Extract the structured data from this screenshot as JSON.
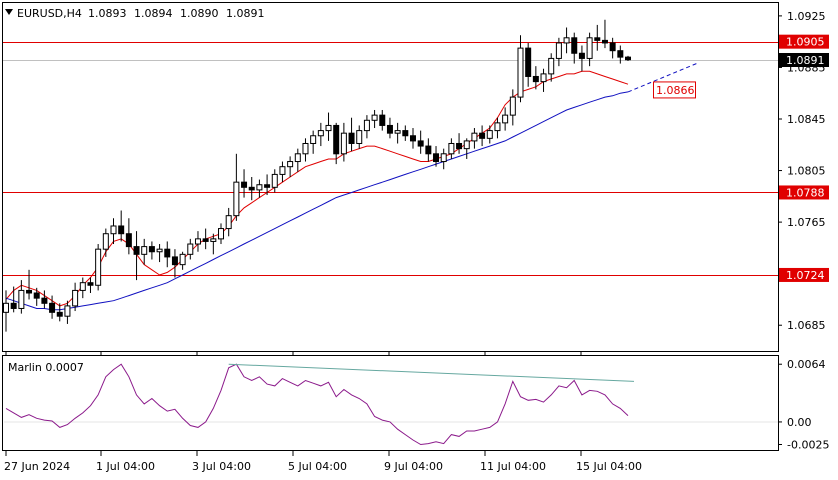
{
  "window": {
    "symbol_label": "EURUSD,H4",
    "ohlc": {
      "open": "1.0893",
      "high": "1.0894",
      "low": "1.0890",
      "close": "1.0891"
    },
    "menu_icon": "triangle-down-icon"
  },
  "indicator": {
    "label": "Marlin 0.0007",
    "line_color": "#8b1a8b",
    "trendline_color": "#66a8a0",
    "y_ticks": [
      "0.0064",
      "0.00",
      "-0.0025"
    ]
  },
  "colors": {
    "price_line": "#e00000",
    "ma_short": "#e00000",
    "ma_long": "#1010c0",
    "candle": "#000000"
  },
  "price_tags": {
    "current": "1.0891",
    "levels": [
      "1.0905",
      "1.0788",
      "1.0724"
    ],
    "projection_label": "1.0866"
  },
  "chart_data": [
    {
      "type": "candlestick",
      "title": "EURUSD,H4",
      "ylim": [
        1.0665,
        1.0935
      ],
      "y_ticks": [
        "1.0925",
        "1.0885",
        "1.0845",
        "1.0805",
        "1.0765",
        "1.0725",
        "1.0685"
      ],
      "x_ticks": [
        "27 Jun 2024",
        "1 Jul 04:00",
        "3 Jul 04:00",
        "5 Jul 04:00",
        "9 Jul 04:00",
        "11 Jul 04:00",
        "15 Jul 04:00"
      ],
      "horizontal_levels": [
        1.0905,
        1.0788,
        1.0724
      ],
      "projection_level": 1.0866,
      "candles": [
        [
          1.0695,
          1.0712,
          1.068,
          1.0702
        ],
        [
          1.0702,
          1.0715,
          1.0695,
          1.0698
        ],
        [
          1.0698,
          1.072,
          1.0694,
          1.0712
        ],
        [
          1.0712,
          1.0728,
          1.0705,
          1.071
        ],
        [
          1.071,
          1.0714,
          1.07,
          1.0706
        ],
        [
          1.0706,
          1.0712,
          1.0698,
          1.0702
        ],
        [
          1.0702,
          1.0708,
          1.069,
          1.0695
        ],
        [
          1.0695,
          1.0702,
          1.0688,
          1.0692
        ],
        [
          1.0692,
          1.0704,
          1.0686,
          1.07
        ],
        [
          1.07,
          1.0718,
          1.0696,
          1.0712
        ],
        [
          1.0712,
          1.0722,
          1.0706,
          1.0718
        ],
        [
          1.0718,
          1.0722,
          1.071,
          1.0716
        ],
        [
          1.0716,
          1.0748,
          1.0712,
          1.0744
        ],
        [
          1.0744,
          1.076,
          1.0738,
          1.0756
        ],
        [
          1.0756,
          1.0768,
          1.0748,
          1.0762
        ],
        [
          1.0762,
          1.0774,
          1.075,
          1.0756
        ],
        [
          1.0756,
          1.0768,
          1.074,
          1.0746
        ],
        [
          1.0746,
          1.0758,
          1.072,
          1.074
        ],
        [
          1.074,
          1.0752,
          1.0732,
          1.0746
        ],
        [
          1.0746,
          1.075,
          1.0736,
          1.0742
        ],
        [
          1.0742,
          1.0748,
          1.0734,
          1.0744
        ],
        [
          1.0744,
          1.075,
          1.073,
          1.0738
        ],
        [
          1.0738,
          1.0744,
          1.0722,
          1.0732
        ],
        [
          1.0732,
          1.0742,
          1.0728,
          1.074
        ],
        [
          1.074,
          1.0752,
          1.0736,
          1.0748
        ],
        [
          1.0748,
          1.0758,
          1.0742,
          1.0752
        ],
        [
          1.0752,
          1.076,
          1.0744,
          1.075
        ],
        [
          1.075,
          1.0756,
          1.074,
          1.0752
        ],
        [
          1.0752,
          1.0764,
          1.0748,
          1.076
        ],
        [
          1.076,
          1.0776,
          1.0754,
          1.077
        ],
        [
          1.077,
          1.0818,
          1.0766,
          1.0796
        ],
        [
          1.0796,
          1.0806,
          1.0784,
          1.0792
        ],
        [
          1.0792,
          1.08,
          1.0782,
          1.079
        ],
        [
          1.079,
          1.0798,
          1.0784,
          1.0794
        ],
        [
          1.0794,
          1.0802,
          1.0786,
          1.0792
        ],
        [
          1.0792,
          1.0806,
          1.0788,
          1.0802
        ],
        [
          1.0802,
          1.0812,
          1.0796,
          1.0808
        ],
        [
          1.0808,
          1.0816,
          1.08,
          1.0812
        ],
        [
          1.0812,
          1.0822,
          1.0804,
          1.0818
        ],
        [
          1.0818,
          1.083,
          1.0812,
          1.0826
        ],
        [
          1.0826,
          1.0836,
          1.0818,
          1.0832
        ],
        [
          1.0832,
          1.0842,
          1.0824,
          1.0836
        ],
        [
          1.0836,
          1.085,
          1.0828,
          1.084
        ],
        [
          1.084,
          1.0842,
          1.081,
          1.0818
        ],
        [
          1.0818,
          1.0842,
          1.0812,
          1.0834
        ],
        [
          1.0834,
          1.0846,
          1.082,
          1.0826
        ],
        [
          1.0826,
          1.084,
          1.0822,
          1.0836
        ],
        [
          1.0836,
          1.0848,
          1.083,
          1.0844
        ],
        [
          1.0844,
          1.0852,
          1.0838,
          1.0848
        ],
        [
          1.0848,
          1.0852,
          1.0836,
          1.084
        ],
        [
          1.084,
          1.0846,
          1.083,
          1.0834
        ],
        [
          1.0834,
          1.0842,
          1.0826,
          1.0836
        ],
        [
          1.0836,
          1.084,
          1.0828,
          1.0832
        ],
        [
          1.0832,
          1.0838,
          1.0822,
          1.0828
        ],
        [
          1.0828,
          1.0836,
          1.0818,
          1.0824
        ],
        [
          1.0824,
          1.083,
          1.0812,
          1.0818
        ],
        [
          1.0818,
          1.0824,
          1.0808,
          1.0812
        ],
        [
          1.0812,
          1.0822,
          1.0806,
          1.0818
        ],
        [
          1.0818,
          1.083,
          1.0814,
          1.0826
        ],
        [
          1.0826,
          1.0834,
          1.0818,
          1.0822
        ],
        [
          1.0822,
          1.083,
          1.0814,
          1.0828
        ],
        [
          1.0828,
          1.0838,
          1.0822,
          1.0834
        ],
        [
          1.0834,
          1.084,
          1.0824,
          1.083
        ],
        [
          1.083,
          1.084,
          1.0826,
          1.0836
        ],
        [
          1.0836,
          1.0846,
          1.083,
          1.0842
        ],
        [
          1.0842,
          1.0854,
          1.0836,
          1.0848
        ],
        [
          1.0848,
          1.0868,
          1.084,
          1.0862
        ],
        [
          1.0862,
          1.091,
          1.0858,
          1.09
        ],
        [
          1.09,
          1.0904,
          1.087,
          1.0878
        ],
        [
          1.0878,
          1.0886,
          1.0868,
          1.0874
        ],
        [
          1.0874,
          1.0884,
          1.0866,
          1.088
        ],
        [
          1.088,
          1.0896,
          1.0874,
          1.0892
        ],
        [
          1.0892,
          1.0908,
          1.0886,
          1.0904
        ],
        [
          1.0904,
          1.0916,
          1.0896,
          1.0908
        ],
        [
          1.0908,
          1.0912,
          1.0888,
          1.0896
        ],
        [
          1.0896,
          1.0902,
          1.0882,
          1.0892
        ],
        [
          1.0892,
          1.0912,
          1.0886,
          1.0908
        ],
        [
          1.0908,
          1.0918,
          1.0898,
          1.0906
        ],
        [
          1.0906,
          1.0922,
          1.09,
          1.0904
        ],
        [
          1.0904,
          1.0908,
          1.0892,
          1.0898
        ],
        [
          1.0898,
          1.0902,
          1.0888,
          1.0893
        ],
        [
          1.0893,
          1.0894,
          1.089,
          1.0891
        ]
      ],
      "ma_short": [
        1.0705,
        1.0712,
        1.0716,
        1.0714,
        1.0712,
        1.0708,
        1.0704,
        1.07,
        1.0702,
        1.0708,
        1.0716,
        1.0722,
        1.073,
        1.0742,
        1.075,
        1.0752,
        1.0748,
        1.074,
        1.0732,
        1.0728,
        1.0724,
        1.0726,
        1.073,
        1.0736,
        1.0742,
        1.0748,
        1.0752,
        1.0754,
        1.0756,
        1.0762,
        1.077,
        1.0776,
        1.078,
        1.0784,
        1.0788,
        1.0792,
        1.0796,
        1.08,
        1.0804,
        1.0808,
        1.081,
        1.0812,
        1.0814,
        1.0814,
        1.0818,
        1.082,
        1.0822,
        1.0824,
        1.0824,
        1.0822,
        1.082,
        1.0818,
        1.0816,
        1.0814,
        1.0812,
        1.0812,
        1.0814,
        1.0816,
        1.0818,
        1.0822,
        1.0826,
        1.083,
        1.0834,
        1.0838,
        1.0846,
        1.0856,
        1.0862,
        1.0866,
        1.0868,
        1.087,
        1.0874,
        1.0876,
        1.0878,
        1.088,
        1.088,
        1.0882,
        1.0882,
        1.088,
        1.0878,
        1.0876,
        1.0874,
        1.0872
      ],
      "ma_long": [
        1.0706,
        1.0704,
        1.0702,
        1.07,
        1.0698,
        1.0698,
        1.0697,
        1.0697,
        1.0698,
        1.0699,
        1.07,
        1.0701,
        1.0702,
        1.0703,
        1.0704,
        1.0706,
        1.0708,
        1.071,
        1.0712,
        1.0714,
        1.0716,
        1.0718,
        1.0721,
        1.0724,
        1.0727,
        1.073,
        1.0733,
        1.0736,
        1.0739,
        1.0742,
        1.0745,
        1.0748,
        1.0751,
        1.0754,
        1.0757,
        1.076,
        1.0763,
        1.0766,
        1.0769,
        1.0772,
        1.0775,
        1.0778,
        1.0781,
        1.0784,
        1.0786,
        1.0788,
        1.079,
        1.0792,
        1.0794,
        1.0796,
        1.0798,
        1.08,
        1.0802,
        1.0804,
        1.0806,
        1.0808,
        1.081,
        1.0812,
        1.0814,
        1.0816,
        1.0818,
        1.082,
        1.0822,
        1.0824,
        1.0826,
        1.0828,
        1.0831,
        1.0834,
        1.0837,
        1.084,
        1.0843,
        1.0846,
        1.0849,
        1.0852,
        1.0854,
        1.0856,
        1.0858,
        1.086,
        1.0862,
        1.0863,
        1.0865,
        1.0866
      ]
    },
    {
      "type": "line",
      "title": "Marlin 0.0007",
      "ylim": [
        -0.003,
        0.0072
      ],
      "values": [
        0.0015,
        0.001,
        0.0005,
        0.0008,
        0.0004,
        0.0002,
        0.0001,
        -0.0006,
        -0.0003,
        0.0004,
        0.001,
        0.0018,
        0.003,
        0.005,
        0.0058,
        0.0064,
        0.005,
        0.003,
        0.002,
        0.0026,
        0.0018,
        0.0012,
        0.0014,
        0.0004,
        -0.0004,
        -0.0006,
        0.0,
        0.0015,
        0.0035,
        0.006,
        0.0064,
        0.005,
        0.0046,
        0.005,
        0.0042,
        0.004,
        0.0048,
        0.0044,
        0.004,
        0.0046,
        0.0043,
        0.004,
        0.0044,
        0.0028,
        0.0036,
        0.003,
        0.0026,
        0.002,
        0.0006,
        0.0002,
        0.0,
        -0.0008,
        -0.0014,
        -0.002,
        -0.0025,
        -0.0024,
        -0.0022,
        -0.0024,
        -0.0014,
        -0.0016,
        -0.001,
        -0.001,
        -0.0008,
        -0.0006,
        0.0,
        0.002,
        0.0045,
        0.0028,
        0.0024,
        0.0025,
        0.0022,
        0.003,
        0.004,
        0.0038,
        0.0046,
        0.003,
        0.0035,
        0.0034,
        0.003,
        0.002,
        0.0015,
        0.0007
      ],
      "trendline": [
        0.0064,
        0.0045
      ]
    }
  ]
}
